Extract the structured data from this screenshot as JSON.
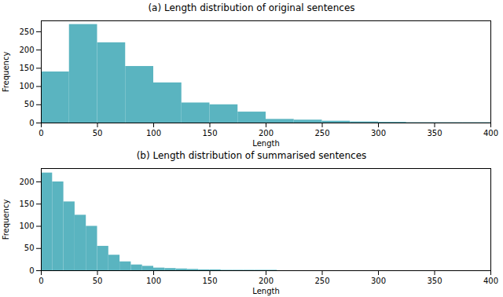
{
  "chart_data": [
    {
      "type": "histogram",
      "title": "(a) Length distribution of original sentences",
      "xlabel": "Length",
      "ylabel": "Frequency",
      "bins": [
        0,
        25,
        50,
        75,
        100,
        125,
        150,
        175,
        200,
        225,
        250,
        275,
        300,
        325,
        350,
        375,
        400
      ],
      "values": [
        140,
        270,
        220,
        155,
        110,
        55,
        50,
        30,
        10,
        8,
        5,
        3,
        2,
        1,
        1,
        1
      ],
      "color": "#5ab4c0",
      "xlim": [
        0,
        400
      ],
      "ylim": [
        0,
        280
      ],
      "xticks": [
        0,
        50,
        100,
        150,
        200,
        250,
        300,
        350,
        400
      ],
      "yticks": [
        0,
        50,
        100,
        150,
        200,
        250
      ]
    },
    {
      "type": "histogram",
      "title": "(b) Length distribution of summarised sentences",
      "xlabel": "Length",
      "ylabel": "Frequency",
      "bins": [
        0,
        10,
        20,
        30,
        40,
        50,
        60,
        70,
        80,
        90,
        100,
        110,
        120,
        130,
        140,
        150,
        160,
        170,
        180,
        190,
        200,
        210,
        220,
        230,
        240,
        250,
        260,
        270,
        280,
        290,
        300,
        400
      ],
      "values": [
        220,
        200,
        155,
        125,
        100,
        55,
        35,
        20,
        13,
        10,
        6,
        5,
        4,
        3,
        2,
        2,
        1,
        1,
        1,
        1,
        1,
        0,
        0,
        0,
        0,
        0,
        0,
        0,
        0,
        0,
        0
      ],
      "color": "#5ab4c0",
      "xlim": [
        0,
        400
      ],
      "ylim": [
        0,
        230
      ],
      "xticks": [
        0,
        50,
        100,
        150,
        200,
        250,
        300,
        350,
        400
      ],
      "yticks": [
        0,
        50,
        100,
        150,
        200
      ]
    }
  ]
}
